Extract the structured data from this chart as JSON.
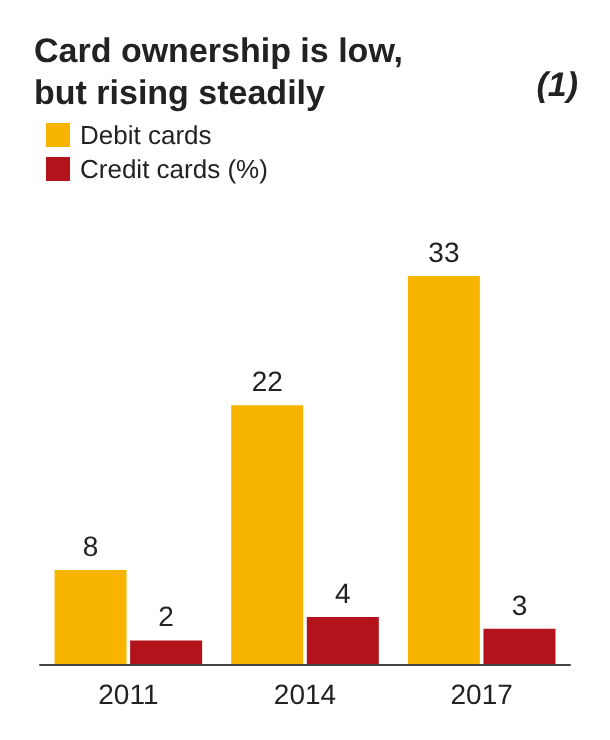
{
  "chart_data": {
    "type": "bar",
    "title": "Card ownership is low,\nbut rising steadily",
    "annotations": [
      "(1)"
    ],
    "categories": [
      "2011",
      "2014",
      "2017"
    ],
    "series": [
      {
        "name": "Debit cards",
        "color": "#f7b500",
        "values": [
          8,
          22,
          33
        ]
      },
      {
        "name": "Credit cards (%)",
        "color": "#b3141c",
        "values": [
          2,
          4,
          3
        ]
      }
    ],
    "data_labels": true,
    "legend": "top left"
  }
}
